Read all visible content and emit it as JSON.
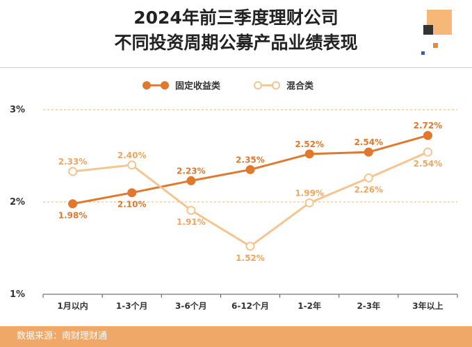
{
  "header": {
    "title_line1": "2024年前三季度理财公司",
    "title_line2": "不同投资周期公募产品业绩表现"
  },
  "footer": {
    "source": "数据来源：南财理财通"
  },
  "colors": {
    "fixed_income": "#e0782d",
    "mixed": "#f5c48f",
    "grid": "#f0b070"
  },
  "chart_data": {
    "type": "line",
    "categories": [
      "1月以内",
      "1-3个月",
      "3-6个月",
      "6-12个月",
      "1-2年",
      "2-3年",
      "3年以上"
    ],
    "series": [
      {
        "name": "固定收益类",
        "values": [
          1.98,
          2.1,
          2.23,
          2.35,
          2.52,
          2.54,
          2.72
        ],
        "labels": [
          "1.98%",
          "2.10%",
          "2.23%",
          "2.35%",
          "2.52%",
          "2.54%",
          "2.72%"
        ]
      },
      {
        "name": "混合类",
        "values": [
          2.33,
          2.4,
          1.91,
          1.52,
          1.99,
          2.26,
          2.54
        ],
        "labels": [
          "2.33%",
          "2.40%",
          "1.91%",
          "1.52%",
          "1.99%",
          "2.26%",
          "2.54%"
        ]
      }
    ],
    "ylim": [
      1,
      3
    ],
    "yticks": [
      1,
      2,
      3
    ],
    "ytick_labels": [
      "1%",
      "2%",
      "3%"
    ],
    "grid": true,
    "legend_position": "top-center"
  }
}
